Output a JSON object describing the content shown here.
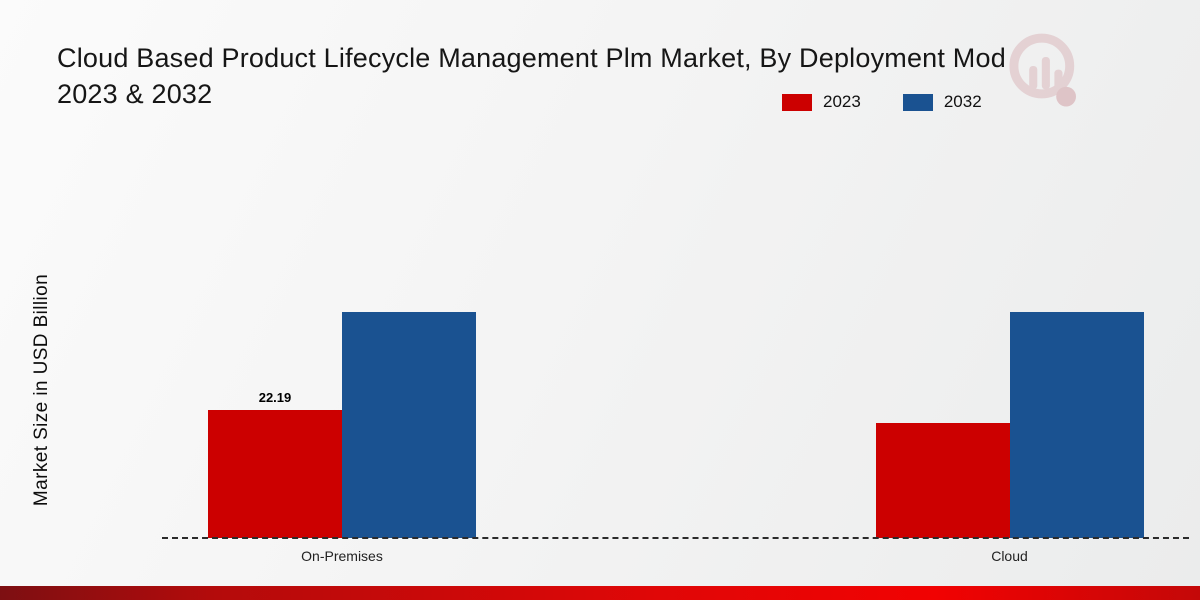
{
  "header": {
    "title_line1": "Cloud Based Product Lifecycle Management Plm Market, By Deployment Mod",
    "title_line2": "2023 & 2032"
  },
  "legend": {
    "items": [
      {
        "label": "2023",
        "color": "#cc0000"
      },
      {
        "label": "2032",
        "color": "#1a5291"
      }
    ]
  },
  "axes": {
    "ylabel": "Market Size in USD Billion"
  },
  "chart_data": {
    "type": "bar",
    "title": "Cloud Based Product Lifecycle Management Plm Market, By Deployment Mode 2023 & 2032",
    "ylabel": "Market Size in USD Billion",
    "categories": [
      "On-Premises",
      "Cloud"
    ],
    "series": [
      {
        "name": "2023",
        "color": "#cc0000",
        "values": [
          22.19,
          19.9
        ]
      },
      {
        "name": "2032",
        "color": "#1a5291",
        "values": [
          39.2,
          39.2
        ]
      }
    ],
    "shown_labels": [
      {
        "series": "2023",
        "category": "On-Premises",
        "text": "22.19"
      }
    ],
    "ylim": [
      0,
      45
    ],
    "grid": false,
    "legend_position": "top-right",
    "baseline_style": "dashed"
  }
}
